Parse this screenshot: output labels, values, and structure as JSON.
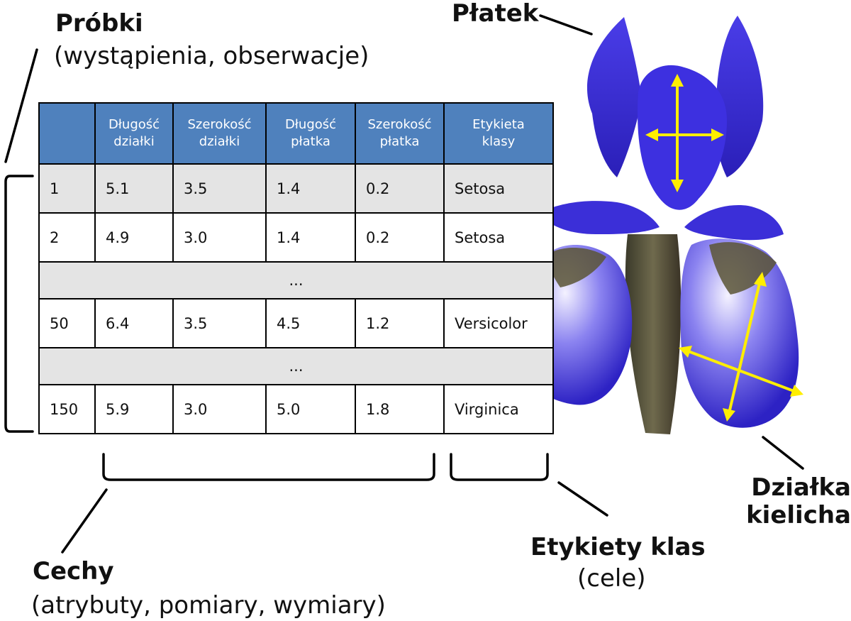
{
  "samples": {
    "title": "Próbki",
    "subtitle": "(wystąpienia, obserwacje)"
  },
  "features": {
    "title": "Cechy",
    "subtitle": "(atrybuty, pomiary, wymiary)"
  },
  "targets": {
    "title": "Etykiety klas",
    "subtitle": "(cele)"
  },
  "flower": {
    "petal_label": "Płatek",
    "sepal_label_line1": "Działka",
    "sepal_label_line2": "kielicha"
  },
  "table": {
    "headers": [
      {
        "line1": "",
        "line2": ""
      },
      {
        "line1": "Długość",
        "line2": "działki"
      },
      {
        "line1": "Szerokość",
        "line2": "działki"
      },
      {
        "line1": "Długość",
        "line2": "płatka"
      },
      {
        "line1": "Szerokość",
        "line2": "płatka"
      },
      {
        "line1": "Etykieta",
        "line2": "klasy"
      }
    ],
    "rows": [
      [
        "1",
        "5.1",
        "3.5",
        "1.4",
        "0.2",
        "Setosa"
      ],
      [
        "2",
        "4.9",
        "3.0",
        "1.4",
        "0.2",
        "Setosa"
      ],
      [
        "50",
        "6.4",
        "3.5",
        "4.5",
        "1.2",
        "Versicolor"
      ],
      [
        "150",
        "5.9",
        "3.0",
        "5.0",
        "1.8",
        "Virginica"
      ]
    ],
    "ellipsis": "..."
  },
  "colors": {
    "header_bg": "#4f81bd",
    "shaded_row": "#e4e4e4",
    "iris": "#3a2fd6",
    "arrow": "#ffee00"
  }
}
